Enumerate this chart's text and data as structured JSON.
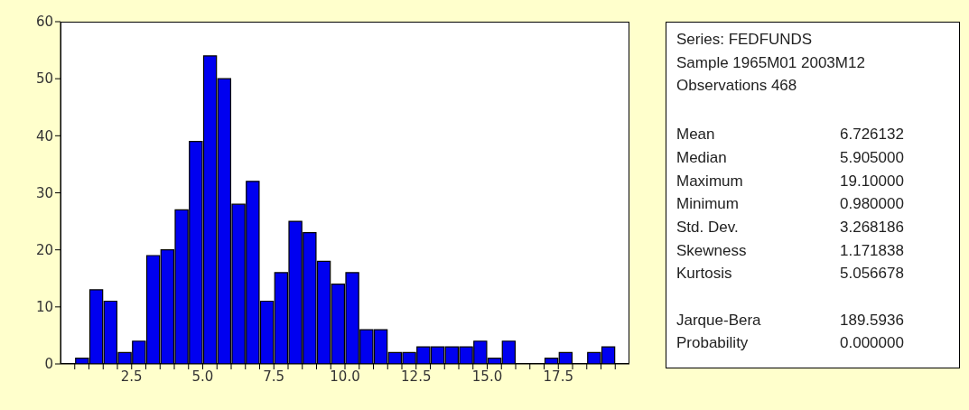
{
  "chart_data": {
    "type": "histogram",
    "bins": [
      0.5,
      1,
      1.5,
      2,
      2.5,
      3,
      3.5,
      4,
      4.5,
      5,
      5.5,
      6,
      6.5,
      7,
      7.5,
      8,
      8.5,
      9,
      9.5,
      10,
      10.5,
      11,
      11.5,
      12,
      12.5,
      13,
      13.5,
      14,
      14.5,
      15,
      15.5,
      16,
      16.5,
      17,
      17.5,
      18,
      18.5,
      19,
      19.5
    ],
    "values": [
      1,
      13,
      11,
      2,
      4,
      19,
      20,
      27,
      39,
      54,
      50,
      28,
      32,
      11,
      16,
      25,
      23,
      18,
      14,
      16,
      6,
      6,
      2,
      2,
      3,
      3,
      3,
      3,
      4,
      1,
      4,
      0,
      0,
      1,
      2,
      0,
      2,
      3
    ],
    "color": "#0000f0",
    "xlim": [
      0,
      20
    ],
    "xticks": [
      {
        "value": 0.5,
        "label": null
      },
      {
        "value": 1,
        "label": null
      },
      {
        "value": 1.5,
        "label": null
      },
      {
        "value": 2,
        "label": null
      },
      {
        "value": 2.5,
        "label": "2.5"
      },
      {
        "value": 3,
        "label": null
      },
      {
        "value": 3.5,
        "label": null
      },
      {
        "value": 4,
        "label": null
      },
      {
        "value": 4.5,
        "label": null
      },
      {
        "value": 5,
        "label": "5.0"
      },
      {
        "value": 5.5,
        "label": null
      },
      {
        "value": 6,
        "label": null
      },
      {
        "value": 6.5,
        "label": null
      },
      {
        "value": 7,
        "label": null
      },
      {
        "value": 7.5,
        "label": "7.5"
      },
      {
        "value": 8,
        "label": null
      },
      {
        "value": 8.5,
        "label": null
      },
      {
        "value": 9,
        "label": null
      },
      {
        "value": 9.5,
        "label": null
      },
      {
        "value": 10,
        "label": "10.0"
      },
      {
        "value": 10.5,
        "label": null
      },
      {
        "value": 11,
        "label": null
      },
      {
        "value": 11.5,
        "label": null
      },
      {
        "value": 12,
        "label": null
      },
      {
        "value": 12.5,
        "label": "12.5"
      },
      {
        "value": 13,
        "label": null
      },
      {
        "value": 13.5,
        "label": null
      },
      {
        "value": 14,
        "label": null
      },
      {
        "value": 14.5,
        "label": null
      },
      {
        "value": 15,
        "label": "15.0"
      },
      {
        "value": 15.5,
        "label": null
      },
      {
        "value": 16,
        "label": null
      },
      {
        "value": 16.5,
        "label": null
      },
      {
        "value": 17,
        "label": null
      },
      {
        "value": 17.5,
        "label": "17.5"
      },
      {
        "value": 18,
        "label": null
      },
      {
        "value": 18.5,
        "label": null
      },
      {
        "value": 19,
        "label": null
      },
      {
        "value": 19.5,
        "label": null
      }
    ],
    "ylim": [
      0,
      60
    ],
    "yticks": [
      0,
      10,
      20,
      30,
      40,
      50,
      60
    ],
    "annotations": [
      "Series: FEDFUNDS",
      "Sample 1965M01 2003M12",
      "Observations 468",
      "Mean",
      "6.726132",
      "Median",
      "5.905000",
      "Maximum",
      "19.10000",
      "Minimum",
      "0.980000",
      "Std. Dev.",
      "3.268186",
      "Skewness",
      "1.171838",
      "Kurtosis",
      "5.056678",
      "Jarque-Bera",
      "189.5936",
      "Probability",
      "0.000000"
    ]
  }
}
